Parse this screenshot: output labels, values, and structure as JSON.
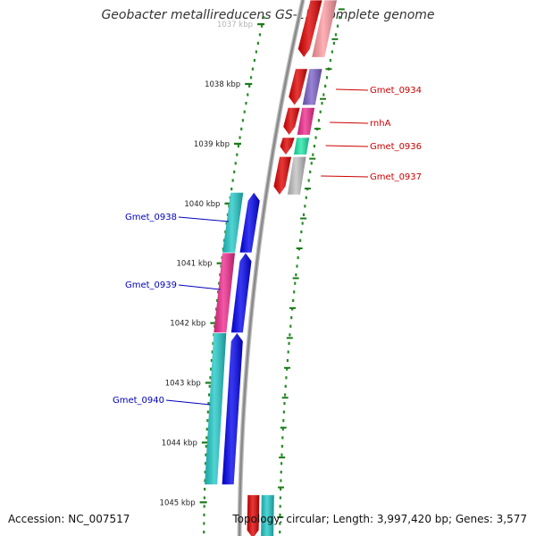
{
  "title": "Geobacter metallireducens GS-15, complete genome",
  "footer": {
    "accession": "Accession: NC_007517",
    "summary": "Topology: circular; Length: 3,997,420 bp; Genes: 3,577"
  },
  "scale": {
    "unit": "kbp",
    "ticks": [
      {
        "kbp": 1037,
        "label": "1037 kbp"
      },
      {
        "kbp": 1038,
        "label": "1038 kbp"
      },
      {
        "kbp": 1039,
        "label": "1039 kbp"
      },
      {
        "kbp": 1040,
        "label": "1040 kbp"
      },
      {
        "kbp": 1041,
        "label": "1041 kbp"
      },
      {
        "kbp": 1042,
        "label": "1042 kbp"
      },
      {
        "kbp": 1043,
        "label": "1043 kbp"
      },
      {
        "kbp": 1044,
        "label": "1044 kbp"
      },
      {
        "kbp": 1045,
        "label": "1045 kbp"
      }
    ]
  },
  "forward_strand": {
    "color": "#e00000",
    "genes": [
      {
        "label": "Gmet_0934",
        "start_kbp": 1037.75,
        "end_kbp": 1038.35,
        "category_color": "#7b60c8"
      },
      {
        "label": "rnhA",
        "start_kbp": 1038.4,
        "end_kbp": 1038.85,
        "category_color": "#f0288c"
      },
      {
        "label": "Gmet_0936",
        "start_kbp": 1038.9,
        "end_kbp": 1039.18,
        "category_color": "#1fe8a8"
      },
      {
        "label": "Gmet_0937",
        "start_kbp": 1039.22,
        "end_kbp": 1039.85,
        "category_color": "#c0c0c0"
      }
    ],
    "partial_genes": [
      {
        "start_kbp": 1036.6,
        "end_kbp": 1037.55,
        "category_color": "#ff9aa0"
      },
      {
        "start_kbp": 1044.88,
        "end_kbp": 1045.6,
        "category_color": "#20c8c8"
      }
    ]
  },
  "reverse_strand": {
    "color": "#0000ee",
    "genes": [
      {
        "label": "Gmet_0938",
        "start_kbp": 1039.82,
        "end_kbp": 1040.82,
        "category_color": "#20c8c8"
      },
      {
        "label": "Gmet_0939",
        "start_kbp": 1040.83,
        "end_kbp": 1042.16,
        "category_color": "#f0288c"
      },
      {
        "label": "Gmet_0940",
        "start_kbp": 1042.17,
        "end_kbp": 1044.7,
        "category_color": "#20c8c8"
      }
    ]
  },
  "colors": {
    "backbone": "#8a8a8a",
    "tick": "#1a7a1a",
    "dots": "#2a8a2a",
    "forward_label": "#cc0000",
    "reverse_label": "#0000bb"
  }
}
